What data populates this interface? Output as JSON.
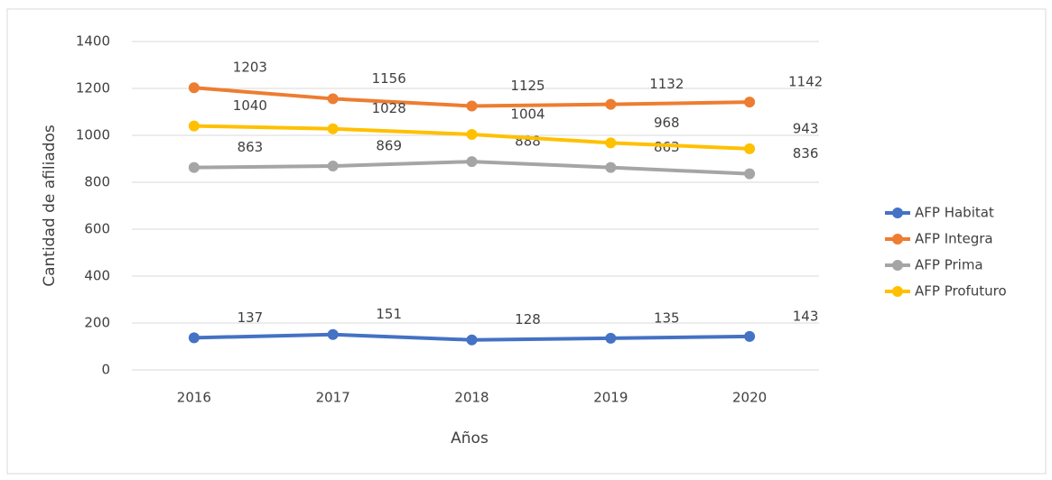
{
  "chart_data": {
    "type": "line",
    "x_label": "Años",
    "y_label": "Cantidad de afiliados",
    "categories": [
      "2016",
      "2017",
      "2018",
      "2019",
      "2020"
    ],
    "series": [
      {
        "name": "AFP Habitat",
        "color": "#4472c4",
        "values": [
          137,
          151,
          128,
          135,
          143
        ]
      },
      {
        "name": "AFP Integra",
        "color": "#ed7d31",
        "values": [
          1203,
          1156,
          1125,
          1132,
          1142
        ]
      },
      {
        "name": "AFP Prima",
        "color": "#a5a5a5",
        "values": [
          863,
          869,
          888,
          863,
          836
        ]
      },
      {
        "name": "AFP Profuturo",
        "color": "#ffc000",
        "values": [
          1040,
          1028,
          1004,
          968,
          943
        ]
      }
    ],
    "ylim": [
      0,
      1400
    ],
    "yticks": [
      0,
      200,
      400,
      600,
      800,
      1000,
      1200,
      1400
    ],
    "grid": true,
    "legend": "right"
  }
}
